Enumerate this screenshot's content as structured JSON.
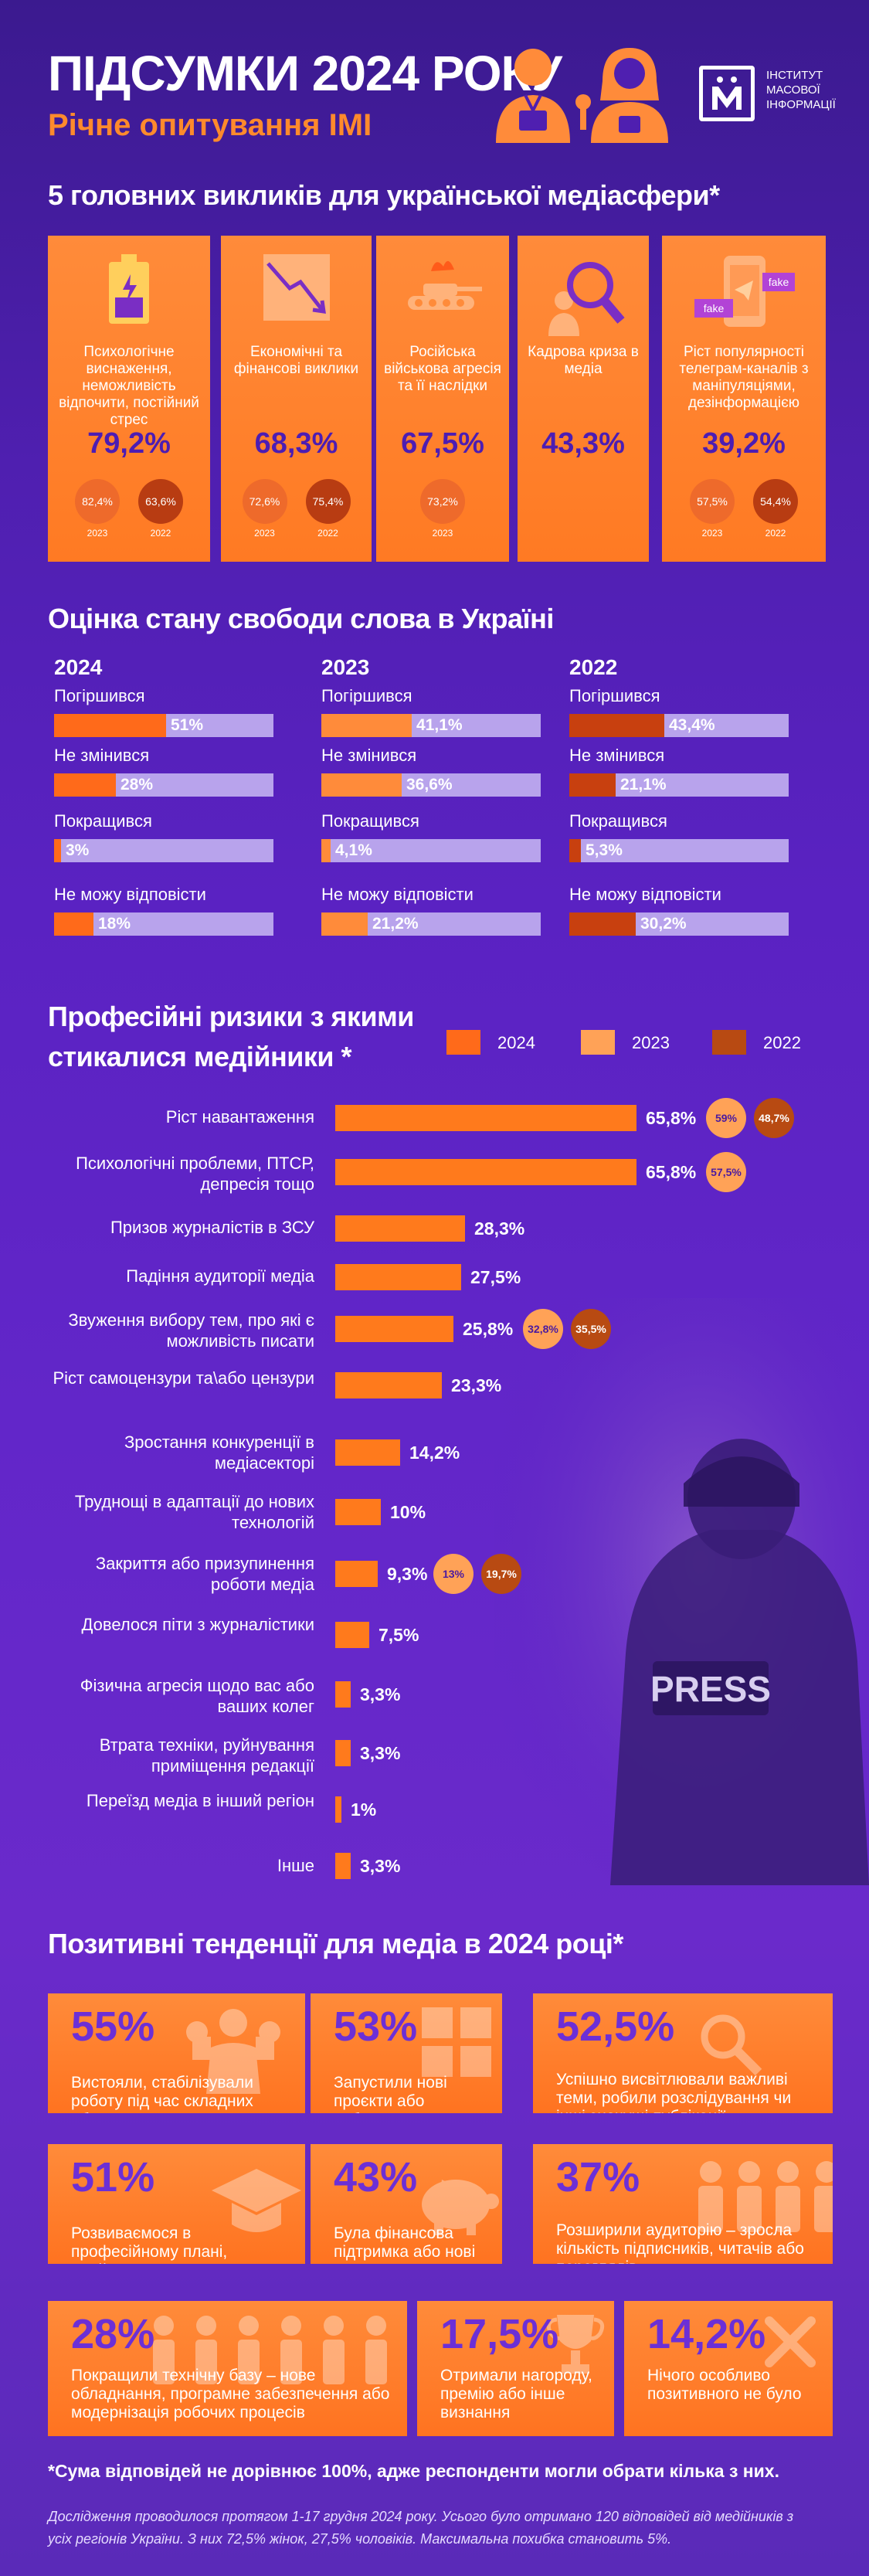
{
  "header": {
    "title": "ПІДСУМКИ 2024 РОКУ",
    "subtitle": "Річне опитування IMI",
    "logo_text": [
      "ІНСТИТУТ",
      "МАСОВОЇ",
      "ІНФОРМАЦІЇ"
    ]
  },
  "challenges": {
    "title": "5 головних викликів для української медіасфери*",
    "cards": [
      {
        "label": "Психологічне виснаження, неможливість відпочити, постійний стрес",
        "value": "79,2%",
        "prev": [
          {
            "v": "82,4%",
            "y": "2023"
          },
          {
            "v": "63,6%",
            "y": "2022"
          }
        ],
        "icon": "battery-low-icon"
      },
      {
        "label": "Економічні та фінансові виклики",
        "value": "68,3%",
        "prev": [
          {
            "v": "72,6%",
            "y": "2023"
          },
          {
            "v": "75,4%",
            "y": "2022"
          }
        ],
        "icon": "trend-down-icon"
      },
      {
        "label": "Російська військова агресія та її наслідки",
        "value": "67,5%",
        "prev": [
          {
            "v": "73,2%",
            "y": "2023"
          }
        ],
        "icon": "tank-icon"
      },
      {
        "label": "Кадрова криза в медіа",
        "value": "43,3%",
        "prev": [],
        "icon": "magnifier-person-icon"
      },
      {
        "label": "Ріст популярності телеграм-каналів з маніпуляціями, дезінформацією",
        "value": "39,2%",
        "prev": [
          {
            "v": "57,5%",
            "y": "2023"
          },
          {
            "v": "54,4%",
            "y": "2022"
          }
        ],
        "icon": "phone-fake-icon"
      }
    ]
  },
  "freedom": {
    "title": "Оцінка стану свободи слова в Україні",
    "years": [
      {
        "year": "2024",
        "rows": [
          {
            "label": "Погіршився",
            "value": 51,
            "text": "51%"
          },
          {
            "label": "Не змінився",
            "value": 28,
            "text": "28%"
          },
          {
            "label": "Покращився",
            "value": 3,
            "text": "3%"
          },
          {
            "label": "Не можу відповісти",
            "value": 18,
            "text": "18%"
          }
        ],
        "color": "#ff6a1a"
      },
      {
        "year": "2023",
        "rows": [
          {
            "label": "Погіршився",
            "value": 41.1,
            "text": "41,1%"
          },
          {
            "label": "Не змінився",
            "value": 36.6,
            "text": "36,6%"
          },
          {
            "label": "Покращився",
            "value": 4.1,
            "text": "4,1%"
          },
          {
            "label": "Не можу відповісти",
            "value": 21.2,
            "text": "21,2%"
          }
        ],
        "color": "#ff8b3a"
      },
      {
        "year": "2022",
        "rows": [
          {
            "label": "Погіршився",
            "value": 43.4,
            "text": "43,4%"
          },
          {
            "label": "Не змінився",
            "value": 21.1,
            "text": "21,1%"
          },
          {
            "label": "Покращився",
            "value": 5.3,
            "text": "5,3%"
          },
          {
            "label": "Не можу відповісти",
            "value": 30.2,
            "text": "30,2%"
          }
        ],
        "color": "#c8400f"
      }
    ]
  },
  "risks": {
    "title_line1": "Професійні ризики з якими",
    "title_line2": "стикалися медійники *",
    "legend": [
      "2024",
      "2023",
      "2022"
    ],
    "legend_colors": [
      "#ff6a1a",
      "#ffa257",
      "#b84a12"
    ]
  },
  "chart_data": {
    "type": "bar",
    "title": "Професійні ризики з якими стикалися медійники *",
    "categories": [
      "Ріст навантаження",
      "Психологічні проблеми, ПТСР, депресія тощо",
      "Призов журналістів в ЗСУ",
      "Падіння аудиторії медіа",
      "Звуження вибору тем, про які є можливість писати",
      "Ріст самоцензури та\\або цензури",
      "Зростання конкуренції в медіасекторі",
      "Труднощі в адаптації до нових технологій",
      "Закриття або призупинення роботи медіа",
      "Довелося піти з журналістики",
      "Фізична агресія щодо вас або ваших колег",
      "Втрата техніки, руйнування приміщення редакції",
      "Переїзд медіа в інший регіон",
      "Інше"
    ],
    "series": [
      {
        "name": "2024",
        "values": [
          65.8,
          65.8,
          28.3,
          27.5,
          25.8,
          23.3,
          14.2,
          10,
          9.3,
          7.5,
          3.3,
          3.3,
          1,
          3.3
        ],
        "labels": [
          "65,8%",
          "65,8%",
          "28,3%",
          "27,5%",
          "25,8%",
          "23,3%",
          "14,2%",
          "10%",
          "9,3%",
          "7,5%",
          "3,3%",
          "3,3%",
          "1%",
          "3,3%"
        ]
      },
      {
        "name": "2023",
        "values": [
          59,
          57.5,
          null,
          null,
          32.8,
          null,
          null,
          null,
          13,
          null,
          null,
          null,
          null,
          null
        ],
        "labels": [
          "59%",
          "57,5%",
          "",
          "",
          "32,8%",
          "",
          "",
          "",
          "13%",
          "",
          "",
          "",
          "",
          ""
        ]
      },
      {
        "name": "2022",
        "values": [
          48.7,
          null,
          null,
          null,
          35.5,
          null,
          null,
          null,
          19.7,
          null,
          null,
          null,
          null,
          null
        ],
        "labels": [
          "48,7%",
          "",
          "",
          "",
          "35,5%",
          "",
          "",
          "",
          "19,7%",
          "",
          "",
          "",
          "",
          ""
        ]
      }
    ]
  },
  "positive": {
    "title": "Позитивні тенденції для медіа в 2024 році*",
    "cards": [
      {
        "pct": "55%",
        "text": "Вистояли, стабілізували роботу під час складних обставин",
        "icon": "strong-arms-icon"
      },
      {
        "pct": "53%",
        "text": "Запустили нові проєкти або рубрики",
        "icon": "grid-blocks-icon"
      },
      {
        "pct": "52,5%",
        "text": "Успішно висвітлювали важливі теми, робили розслідування чи інші значущі публікації",
        "icon": "search-icon"
      },
      {
        "pct": "51%",
        "text": "Розвиваємося в професійному плані, пройшли навчання",
        "icon": "graduation-cap-icon"
      },
      {
        "pct": "43%",
        "text": "Була фінансова підтримка або нові гранти",
        "icon": "piggy-bank-icon"
      },
      {
        "pct": "37%",
        "text": "Розширили аудиторію – зросла кількість підписників, читачів або переглядів",
        "icon": "people-group-icon"
      },
      {
        "pct": "28%",
        "text": "Покращили технічну базу – нове обладнання, програмне забезпечення або модернізація робочих процесів",
        "icon": "people-row-icon"
      },
      {
        "pct": "17,5%",
        "text": "Отримали нагороду, премію або інше визнання",
        "icon": "trophy-icon"
      },
      {
        "pct": "14,2%",
        "text": "Нічого особливо позитивного не було",
        "icon": "cross-icon"
      }
    ]
  },
  "footer": {
    "note": "*Сума відповідей не дорівнює 100%, адже респонденти могли обрати кілька з них.",
    "small": "Дослідження проводилося протягом 1-17 грудня 2024 року. Усього було отримано 120 відповідей від медійників з усіх регіонів України. З них 72,5% жінок, 27,5% чоловіків. Максимальна похибка становить 5%."
  },
  "photo": {
    "press_text": "PRESS"
  }
}
